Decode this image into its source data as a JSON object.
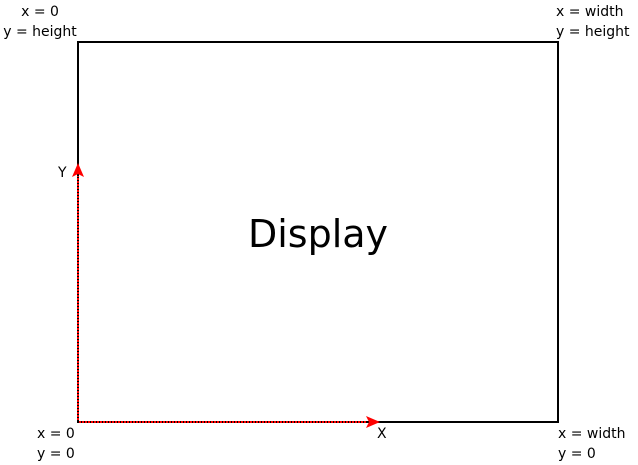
{
  "diagram": {
    "display_label": "Display",
    "corners": {
      "top_left": {
        "x_text": "x = 0",
        "y_text": "y = height"
      },
      "top_right": {
        "x_text": "x = width",
        "y_text": "y = height"
      },
      "bottom_left": {
        "x_text": "x = 0",
        "y_text": "y = 0"
      },
      "bottom_right": {
        "x_text": "x = width",
        "y_text": "y = 0"
      }
    },
    "axes": {
      "x_label": "X",
      "y_label": "Y"
    },
    "colors": {
      "border": "#000000",
      "axis_arrow": "#ff0000",
      "text": "#000000"
    }
  }
}
